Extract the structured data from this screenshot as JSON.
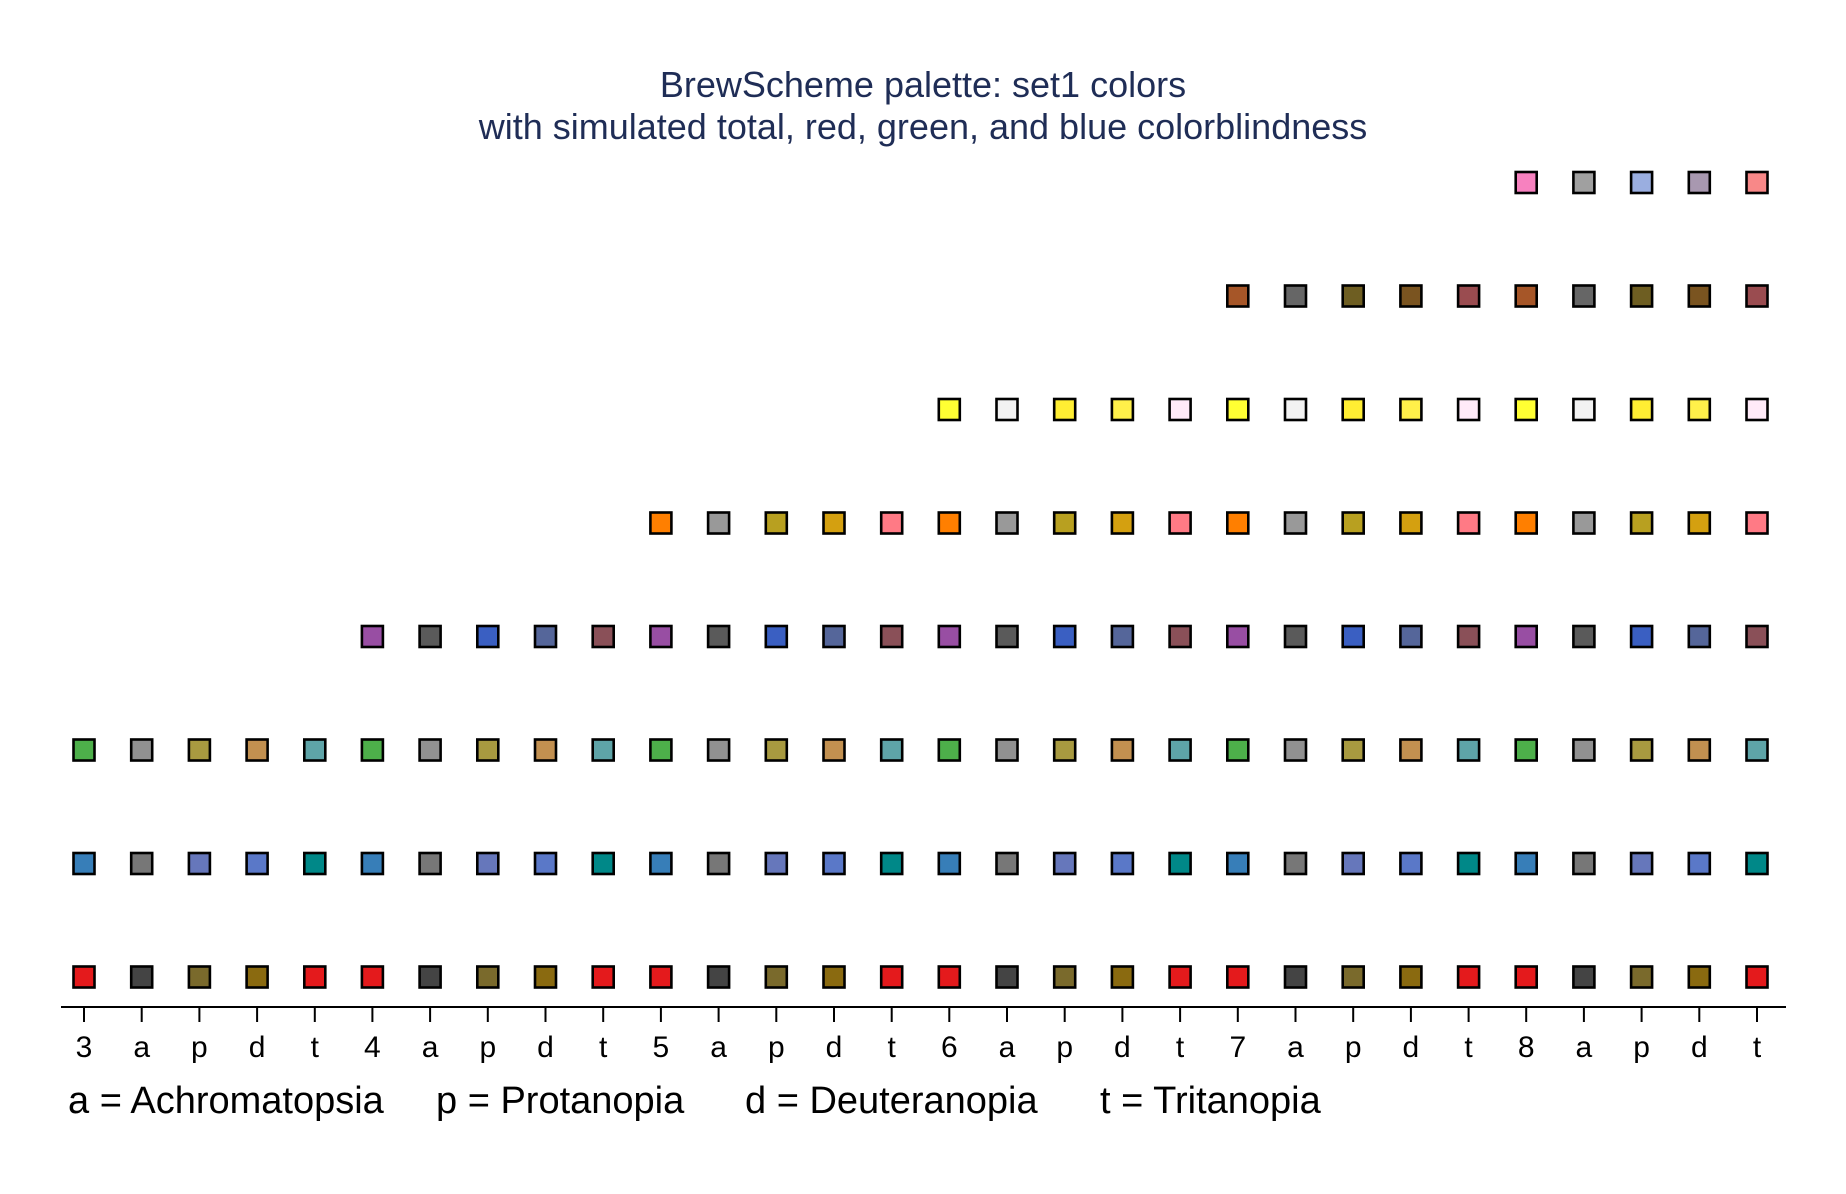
{
  "chart_data": {
    "type": "scatter",
    "title": "BrewScheme palette: set1 colors",
    "subtitle": "with simulated total, red, green, and blue colorblindness",
    "xlabel": "",
    "ylabel": "",
    "x_tick_labels": [
      "3",
      "a",
      "p",
      "d",
      "t",
      "4",
      "a",
      "p",
      "d",
      "t",
      "5",
      "a",
      "p",
      "d",
      "t",
      "6",
      "a",
      "p",
      "d",
      "t",
      "7",
      "a",
      "p",
      "d",
      "t",
      "8",
      "a",
      "p",
      "d",
      "t"
    ],
    "legend": [
      {
        "key": "a",
        "text": "a = Achromatopsia"
      },
      {
        "key": "p",
        "text": "p = Protanopia"
      },
      {
        "key": "d",
        "text": "d = Deuteranopia"
      },
      {
        "key": "t",
        "text": "t = Tritanopia"
      }
    ],
    "grid": false,
    "marker": "square",
    "rows": [
      {
        "start_col": 0,
        "colors": [
          "#e41a1c",
          "#444444",
          "#7a6a2c",
          "#8a6a10",
          "#e41a1c",
          "#e41a1c",
          "#444444",
          "#7a6a2c",
          "#8a6a10",
          "#e41a1c",
          "#e41a1c",
          "#444444",
          "#7a6a2c",
          "#8a6a10",
          "#e41a1c",
          "#e41a1c",
          "#444444",
          "#7a6a2c",
          "#8a6a10",
          "#e41a1c",
          "#e41a1c",
          "#444444",
          "#7a6a2c",
          "#8a6a10",
          "#e41a1c",
          "#e41a1c",
          "#444444",
          "#7a6a2c",
          "#8a6a10",
          "#e41a1c"
        ]
      },
      {
        "start_col": 0,
        "colors": [
          "#377eb8",
          "#777777",
          "#6677bb",
          "#5a78c8",
          "#008888",
          "#377eb8",
          "#777777",
          "#6677bb",
          "#5a78c8",
          "#008888",
          "#377eb8",
          "#777777",
          "#6677bb",
          "#5a78c8",
          "#008888",
          "#377eb8",
          "#777777",
          "#6677bb",
          "#5a78c8",
          "#008888",
          "#377eb8",
          "#777777",
          "#6677bb",
          "#5a78c8",
          "#008888",
          "#377eb8",
          "#777777",
          "#6677bb",
          "#5a78c8",
          "#008888"
        ]
      },
      {
        "start_col": 0,
        "colors": [
          "#4daf4a",
          "#919191",
          "#a89a40",
          "#c29050",
          "#5ea4a8",
          "#4daf4a",
          "#919191",
          "#a89a40",
          "#c29050",
          "#5ea4a8",
          "#4daf4a",
          "#919191",
          "#a89a40",
          "#c29050",
          "#5ea4a8",
          "#4daf4a",
          "#919191",
          "#a89a40",
          "#c29050",
          "#5ea4a8",
          "#4daf4a",
          "#919191",
          "#a89a40",
          "#c29050",
          "#5ea4a8",
          "#4daf4a",
          "#919191",
          "#a89a40",
          "#c29050",
          "#5ea4a8"
        ]
      },
      {
        "start_col": 5,
        "colors": [
          "#984ea3",
          "#5a5a5a",
          "#3a5fc2",
          "#55669a",
          "#8a5058",
          "#984ea3",
          "#5a5a5a",
          "#3a5fc2",
          "#55669a",
          "#8a5058",
          "#984ea3",
          "#5a5a5a",
          "#3a5fc2",
          "#55669a",
          "#8a5058",
          "#984ea3",
          "#5a5a5a",
          "#3a5fc2",
          "#55669a",
          "#8a5058",
          "#984ea3",
          "#5a5a5a",
          "#3a5fc2",
          "#55669a",
          "#8a5058"
        ]
      },
      {
        "start_col": 10,
        "colors": [
          "#ff7f00",
          "#999999",
          "#b8a020",
          "#d4a010",
          "#ff7a85",
          "#ff7f00",
          "#999999",
          "#b8a020",
          "#d4a010",
          "#ff7a85",
          "#ff7f00",
          "#999999",
          "#b8a020",
          "#d4a010",
          "#ff7a85",
          "#ff7f00",
          "#999999",
          "#b8a020",
          "#d4a010",
          "#ff7a85"
        ]
      },
      {
        "start_col": 15,
        "colors": [
          "#ffff33",
          "#f2f2f2",
          "#ffee33",
          "#fff04a",
          "#ffeaf8",
          "#ffff33",
          "#f2f2f2",
          "#ffee33",
          "#fff04a",
          "#ffeaf8",
          "#ffff33",
          "#f2f2f2",
          "#ffee33",
          "#fff04a",
          "#ffeaf8"
        ]
      },
      {
        "start_col": 20,
        "colors": [
          "#a65628",
          "#666666",
          "#6e5e22",
          "#7a5420",
          "#9a4c50",
          "#a65628",
          "#666666",
          "#6e5e22",
          "#7a5420",
          "#9a4c50"
        ]
      },
      {
        "start_col": 25,
        "colors": [
          "#f781bf",
          "#a0a0a0",
          "#9aaee0",
          "#a898b0",
          "#f88888"
        ]
      }
    ]
  }
}
